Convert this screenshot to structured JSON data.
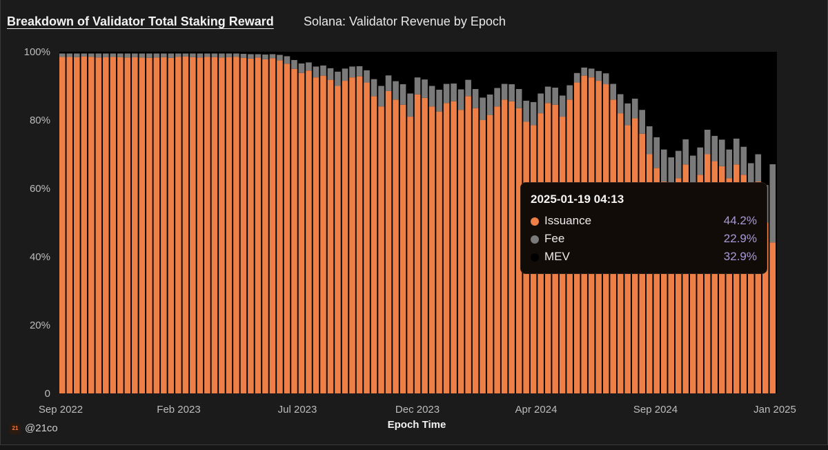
{
  "header": {
    "title": "Breakdown of Validator Total Staking Reward",
    "subtitle": "Solana: Validator Revenue by Epoch"
  },
  "brand": {
    "logo": "21",
    "handle": "@21co"
  },
  "tooltip": {
    "date": "2025-01-19 04:13",
    "rows": [
      {
        "name": "Issuance",
        "value": "44.2%",
        "color": "#ee7f46"
      },
      {
        "name": "Fee",
        "value": "22.9%",
        "color": "#7a7a7a"
      },
      {
        "name": "MEV",
        "value": "32.9%",
        "color": "#000000"
      }
    ]
  },
  "chart_data": {
    "type": "bar",
    "stacked": true,
    "xlabel": "Epoch Time",
    "ylabel": "",
    "ylim": [
      0,
      100
    ],
    "y_ticks": [
      "0",
      "20%",
      "40%",
      "60%",
      "80%",
      "100%"
    ],
    "x_ticks": [
      "Sep 2022",
      "Feb 2023",
      "Jul 2023",
      "Dec 2023",
      "Apr 2024",
      "Sep 2024",
      "Jan 2025"
    ],
    "x_range": [
      "2022-09",
      "2025-01"
    ],
    "legend": "tooltip",
    "series": [
      {
        "name": "Issuance",
        "color": "#ee7f46",
        "values": [
          98.5,
          98.5,
          98.4,
          98.6,
          98.5,
          98.3,
          98.4,
          98.5,
          98.4,
          98.3,
          98.4,
          98.3,
          98.2,
          98.3,
          98.4,
          98.2,
          98.5,
          98.6,
          98.4,
          98.3,
          98.5,
          98.4,
          98.3,
          98.4,
          98.5,
          98.2,
          98.0,
          98.3,
          97.8,
          98.1,
          97.5,
          96.5,
          95.0,
          93.8,
          94.5,
          92.5,
          93.0,
          91.8,
          90.0,
          91.5,
          92.5,
          92.8,
          91.0,
          87.0,
          84.0,
          88.5,
          86.0,
          84.5,
          81.0,
          87.5,
          86.5,
          84.0,
          82.5,
          85.0,
          85.5,
          83.0,
          87.0,
          83.5,
          80.0,
          81.5,
          84.0,
          86.0,
          85.5,
          83.5,
          79.5,
          78.5,
          82.0,
          85.0,
          84.5,
          81.0,
          86.0,
          91.0,
          93.0,
          92.5,
          91.5,
          90.5,
          86.0,
          82.0,
          78.5,
          80.5,
          76.0,
          70.0,
          66.0,
          62.0,
          60.5,
          63.0,
          67.0,
          61.0,
          64.0,
          70.0,
          68.0,
          66.5,
          63.0,
          67.0,
          64.0,
          58.0,
          62.0,
          50.0,
          44.2
        ]
      },
      {
        "name": "Fee",
        "color": "#7a7a7a",
        "values": [
          1.0,
          1.0,
          1.1,
          0.9,
          1.0,
          1.2,
          1.1,
          1.0,
          1.1,
          1.2,
          1.1,
          1.2,
          1.3,
          1.2,
          1.1,
          1.3,
          1.0,
          0.9,
          1.1,
          1.2,
          1.0,
          1.1,
          1.2,
          1.1,
          1.0,
          1.2,
          1.3,
          1.0,
          1.4,
          1.2,
          1.6,
          2.2,
          2.6,
          2.8,
          2.4,
          3.2,
          3.0,
          3.4,
          4.2,
          3.6,
          3.2,
          3.0,
          3.6,
          5.0,
          6.0,
          4.6,
          5.4,
          6.0,
          6.8,
          5.0,
          5.4,
          6.0,
          6.4,
          5.6,
          5.2,
          6.0,
          4.8,
          5.6,
          6.6,
          6.0,
          5.4,
          4.6,
          5.0,
          5.6,
          6.2,
          6.8,
          5.8,
          4.8,
          5.0,
          6.2,
          4.2,
          2.8,
          2.4,
          2.6,
          2.9,
          3.2,
          4.6,
          5.6,
          6.4,
          5.8,
          7.0,
          8.2,
          9.0,
          9.4,
          8.6,
          8.0,
          7.4,
          8.6,
          8.0,
          7.2,
          7.4,
          7.8,
          8.4,
          7.6,
          8.2,
          9.4,
          8.0,
          11.0,
          22.9
        ]
      },
      {
        "name": "MEV",
        "color": "#000000",
        "values": [
          0.5,
          0.5,
          0.5,
          0.5,
          0.5,
          0.5,
          0.5,
          0.5,
          0.5,
          0.5,
          0.5,
          0.5,
          0.5,
          0.5,
          0.5,
          0.5,
          0.5,
          0.5,
          0.5,
          0.5,
          0.5,
          0.5,
          0.5,
          0.5,
          0.5,
          0.6,
          0.7,
          0.7,
          0.8,
          0.7,
          0.9,
          1.3,
          2.4,
          3.4,
          3.1,
          4.3,
          4.0,
          4.8,
          5.8,
          4.9,
          4.3,
          4.2,
          5.4,
          8.0,
          10.0,
          6.9,
          8.6,
          9.5,
          12.2,
          7.5,
          8.1,
          10.0,
          11.1,
          9.4,
          9.3,
          11.0,
          8.2,
          10.9,
          13.4,
          12.5,
          10.6,
          9.4,
          9.5,
          10.9,
          14.3,
          14.7,
          12.2,
          10.2,
          10.5,
          12.8,
          9.8,
          6.2,
          4.6,
          4.9,
          5.6,
          6.3,
          9.4,
          12.4,
          15.1,
          13.7,
          17.0,
          21.8,
          25.0,
          28.6,
          30.9,
          29.0,
          25.6,
          30.4,
          28.0,
          22.8,
          24.6,
          25.7,
          28.6,
          25.4,
          27.8,
          32.6,
          30.0,
          39.0,
          32.9
        ]
      }
    ]
  }
}
